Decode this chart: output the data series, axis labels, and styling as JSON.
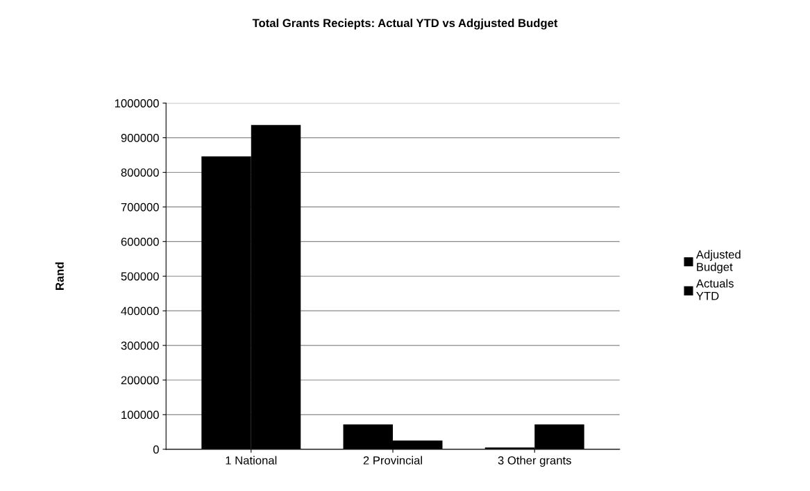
{
  "chart_data": {
    "type": "bar",
    "title": "Total Grants Reciepts: Actual YTD vs Adgjusted Budget",
    "ylabel": "Rand",
    "categories": [
      "1 National",
      "2 Provincial",
      "3 Other grants"
    ],
    "series": [
      {
        "name": "Adjusted\nBudget",
        "color": "#000000",
        "values": [
          846000,
          72000,
          5000
        ]
      },
      {
        "name": "Actuals\nYTD",
        "color": "#000000",
        "values": [
          937000,
          25000,
          72000
        ]
      }
    ],
    "ylim": [
      0,
      1000000
    ],
    "yticks": [
      0,
      100000,
      200000,
      300000,
      400000,
      500000,
      600000,
      700000,
      800000,
      900000,
      1000000
    ],
    "grid": "y",
    "legend": "right"
  }
}
